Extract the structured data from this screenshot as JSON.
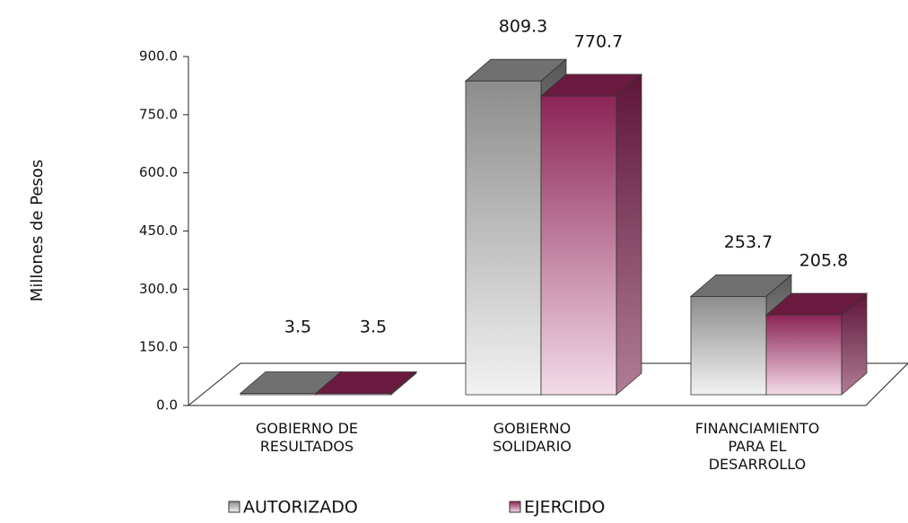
{
  "chart_data": {
    "type": "bar3d",
    "y_label": "Millones de Pesos",
    "categories": [
      "GOBIERNO DE\nRESULTADOS",
      "GOBIERNO\nSOLIDARIO",
      "FINANCIAMIENTO\nPARA EL\nDESARROLLO"
    ],
    "series": [
      {
        "name": "AUTORIZADO",
        "color": "#8c8c8c",
        "values": [
          3.5,
          809.3,
          253.7
        ]
      },
      {
        "name": "EJERCIDO",
        "color": "#8c2455",
        "values": [
          3.5,
          770.7,
          205.8
        ]
      }
    ],
    "ylim": [
      0,
      900
    ],
    "yticks": [
      {
        "value": 0,
        "label": "0.0"
      },
      {
        "value": 150,
        "label": "150.0"
      },
      {
        "value": 300,
        "label": "300.0"
      },
      {
        "value": 450,
        "label": "450.0"
      },
      {
        "value": 600,
        "label": "600.0"
      },
      {
        "value": 750,
        "label": "750.0"
      },
      {
        "value": 900,
        "label": "900.0"
      }
    ]
  }
}
